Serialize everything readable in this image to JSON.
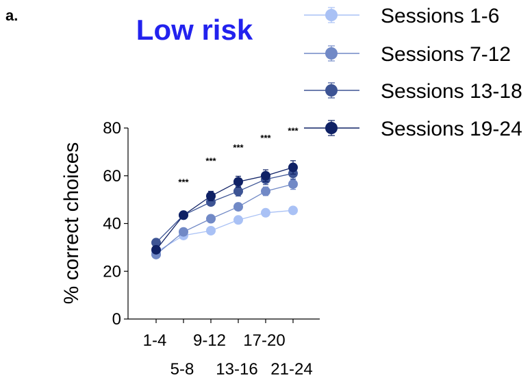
{
  "panel_label": "a.",
  "chart_data": {
    "type": "line",
    "title": "Low risk",
    "title_color": "#2222ee",
    "ylabel": "% correct choices",
    "xlabel": "",
    "ylim": [
      0,
      80
    ],
    "yticks": [
      0,
      20,
      40,
      60,
      80
    ],
    "categories": [
      "1-4",
      "5-8",
      "9-12",
      "13-16",
      "17-20",
      "21-24"
    ],
    "x_tick_rows": [
      "upper",
      "lower",
      "upper",
      "lower",
      "upper",
      "lower"
    ],
    "legend_position": "top-right",
    "grid": false,
    "series": [
      {
        "name": "Sessions 1-6",
        "color": "#a9c1f5",
        "values": [
          28,
          35,
          37,
          41.5,
          44.5,
          45.5
        ],
        "errors": [
          1,
          1,
          1,
          1.2,
          1.2,
          1.5
        ]
      },
      {
        "name": "Sessions 7-12",
        "color": "#7189c6",
        "values": [
          27,
          36.5,
          42,
          47,
          53.5,
          56.5
        ],
        "errors": [
          1,
          1.2,
          1.2,
          1.5,
          1.8,
          2.2
        ]
      },
      {
        "name": "Sessions 13-18",
        "color": "#3d5494",
        "values": [
          32,
          43.5,
          49,
          53.5,
          58.5,
          61
        ],
        "errors": [
          1,
          1.5,
          1.5,
          2,
          2.2,
          2.5
        ]
      },
      {
        "name": "Sessions 19-24",
        "color": "#0f2165",
        "values": [
          29,
          43.5,
          51.5,
          57.5,
          60,
          63.5
        ],
        "errors": [
          1,
          1.5,
          2,
          2.3,
          2.5,
          2.8
        ]
      }
    ],
    "annotations": [
      {
        "category": "5-8",
        "text": "***",
        "y": 56
      },
      {
        "category": "9-12",
        "text": "***",
        "y": 65
      },
      {
        "category": "13-16",
        "text": "***",
        "y": 70.5
      },
      {
        "category": "17-20",
        "text": "***",
        "y": 74.5
      },
      {
        "category": "21-24",
        "text": "***",
        "y": 77.5
      }
    ]
  }
}
